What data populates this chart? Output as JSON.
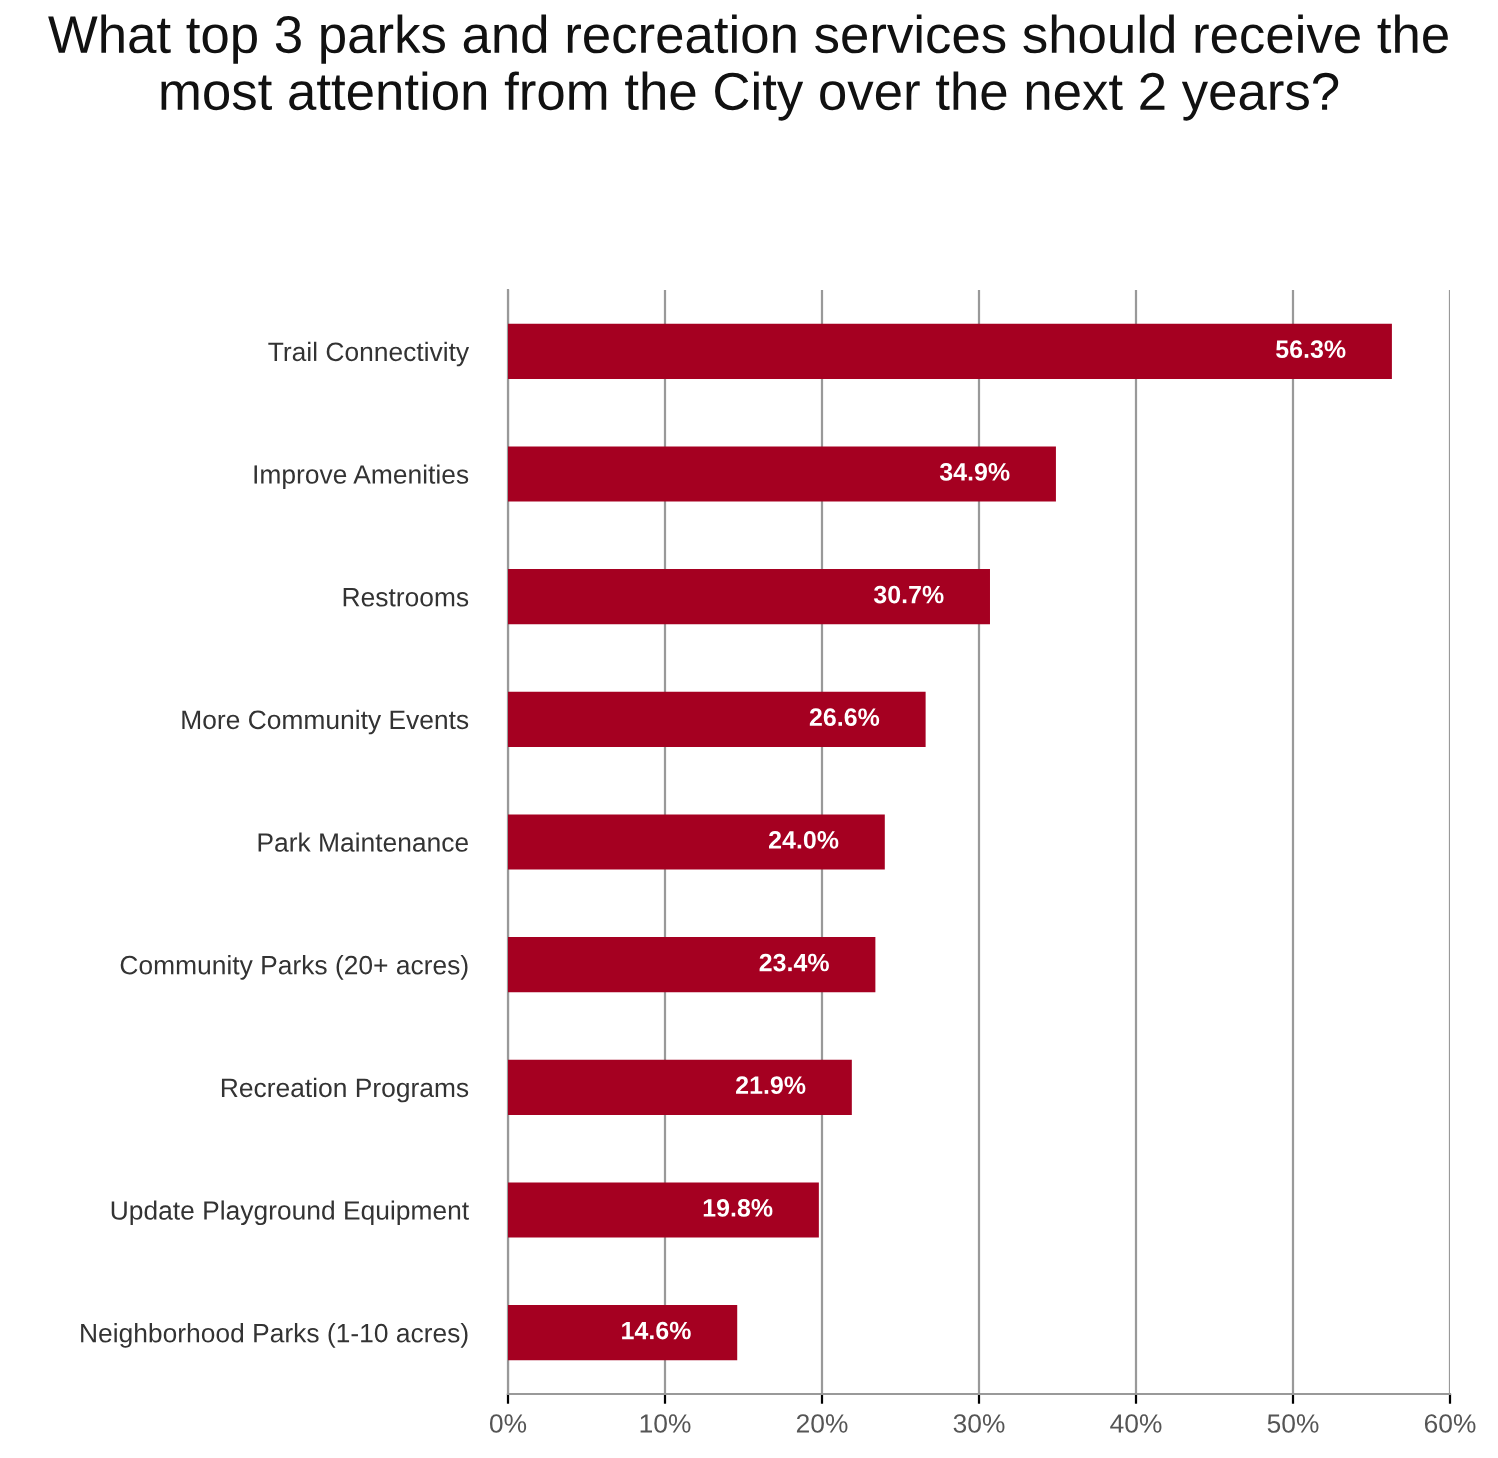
{
  "chart_data": {
    "type": "bar",
    "orientation": "horizontal",
    "title": "What top 3 parks and recreation services should receive the most attention from the City over the next 2 years?",
    "categories": [
      "Trail Connectivity",
      "Improve Amenities",
      "Restrooms",
      "More Community Events",
      "Park Maintenance",
      "Community Parks (20+ acres)",
      "Recreation Programs",
      "Update Playground Equipment",
      "Neighborhood Parks (1-10 acres)"
    ],
    "values": [
      56.3,
      34.9,
      30.7,
      26.6,
      24.0,
      23.4,
      21.9,
      19.8,
      14.6
    ],
    "value_labels": [
      "56.3%",
      "34.9%",
      "30.7%",
      "26.6%",
      "24.0%",
      "23.4%",
      "21.9%",
      "19.8%",
      "14.6%"
    ],
    "color": "#a50021",
    "xlim": [
      0,
      60
    ],
    "xticks": [
      {
        "value": 0,
        "label": "0%"
      },
      {
        "value": 10,
        "label": "10%"
      },
      {
        "value": 20,
        "label": "20%"
      },
      {
        "value": 30,
        "label": "30%"
      },
      {
        "value": 40,
        "label": "40%"
      },
      {
        "value": 50,
        "label": "50%"
      },
      {
        "value": 60,
        "label": "60%"
      }
    ],
    "grid": "x"
  }
}
